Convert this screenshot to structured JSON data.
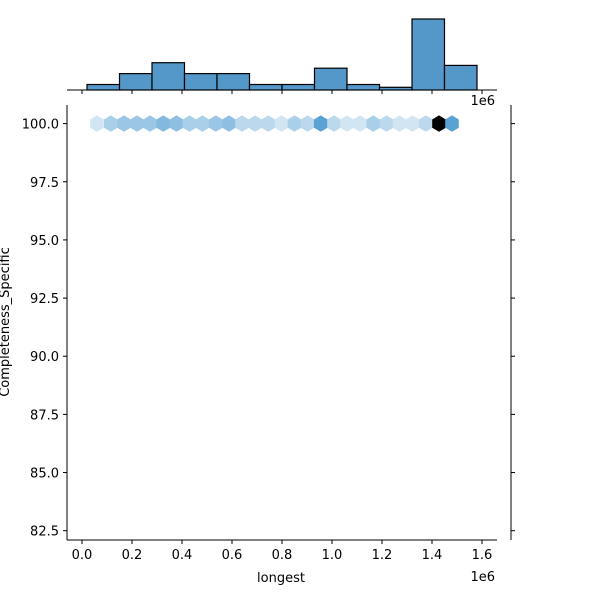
{
  "chart_data": [
    {
      "type": "hexbin",
      "xlabel": "longest",
      "ylabel": "Completeness_Specific",
      "x_offset_label": "1e6",
      "xlim": [
        -60000,
        1660000
      ],
      "ylim": [
        82.1,
        100.8
      ],
      "x_ticks": [
        0,
        200000,
        400000,
        600000,
        800000,
        1000000,
        1200000,
        1400000,
        1600000
      ],
      "x_tick_labels": [
        "0.0",
        "0.2",
        "0.4",
        "0.6",
        "0.8",
        "1.0",
        "1.2",
        "1.4",
        "1.6"
      ],
      "y_ticks": [
        82.5,
        85.0,
        87.5,
        90.0,
        92.5,
        95.0,
        97.5,
        100.0
      ],
      "y_tick_labels": [
        "82.5",
        "85.0",
        "87.5",
        "90.0",
        "92.5",
        "95.0",
        "97.5",
        "100.0"
      ],
      "hexagons": [
        {
          "x": 60000,
          "y": 100,
          "count": 1
        },
        {
          "x": 115000,
          "y": 100,
          "count": 3
        },
        {
          "x": 168000,
          "y": 100,
          "count": 4
        },
        {
          "x": 220000,
          "y": 100,
          "count": 4
        },
        {
          "x": 272000,
          "y": 100,
          "count": 4
        },
        {
          "x": 325000,
          "y": 100,
          "count": 6
        },
        {
          "x": 378000,
          "y": 100,
          "count": 5
        },
        {
          "x": 430000,
          "y": 100,
          "count": 3
        },
        {
          "x": 482000,
          "y": 100,
          "count": 3
        },
        {
          "x": 535000,
          "y": 100,
          "count": 4
        },
        {
          "x": 588000,
          "y": 100,
          "count": 5
        },
        {
          "x": 640000,
          "y": 100,
          "count": 2
        },
        {
          "x": 692000,
          "y": 100,
          "count": 2
        },
        {
          "x": 745000,
          "y": 100,
          "count": 2
        },
        {
          "x": 798000,
          "y": 100,
          "count": 1
        },
        {
          "x": 850000,
          "y": 100,
          "count": 3
        },
        {
          "x": 902000,
          "y": 100,
          "count": 2
        },
        {
          "x": 955000,
          "y": 100,
          "count": 10
        },
        {
          "x": 1008000,
          "y": 100,
          "count": 2
        },
        {
          "x": 1060000,
          "y": 100,
          "count": 1
        },
        {
          "x": 1112000,
          "y": 100,
          "count": 1
        },
        {
          "x": 1165000,
          "y": 100,
          "count": 3
        },
        {
          "x": 1218000,
          "y": 100,
          "count": 2
        },
        {
          "x": 1270000,
          "y": 100,
          "count": 1
        },
        {
          "x": 1322000,
          "y": 100,
          "count": 1
        },
        {
          "x": 1375000,
          "y": 100,
          "count": 2
        },
        {
          "x": 1428000,
          "y": 100,
          "count": 30
        },
        {
          "x": 1480000,
          "y": 100,
          "count": 10
        }
      ],
      "max_count": 30,
      "color_scale": [
        "#ffffff",
        "#4a98d0",
        "#000000"
      ]
    },
    {
      "type": "histogram",
      "bin_edges": [
        20000,
        150000,
        280000,
        410000,
        540000,
        670000,
        800000,
        930000,
        1060000,
        1190000,
        1320000,
        1450000,
        1580000
      ],
      "counts": [
        1,
        3,
        5,
        3,
        3,
        1,
        1,
        4,
        1,
        0.5,
        13,
        4.5
      ],
      "bar_color": "#5497c9"
    }
  ]
}
